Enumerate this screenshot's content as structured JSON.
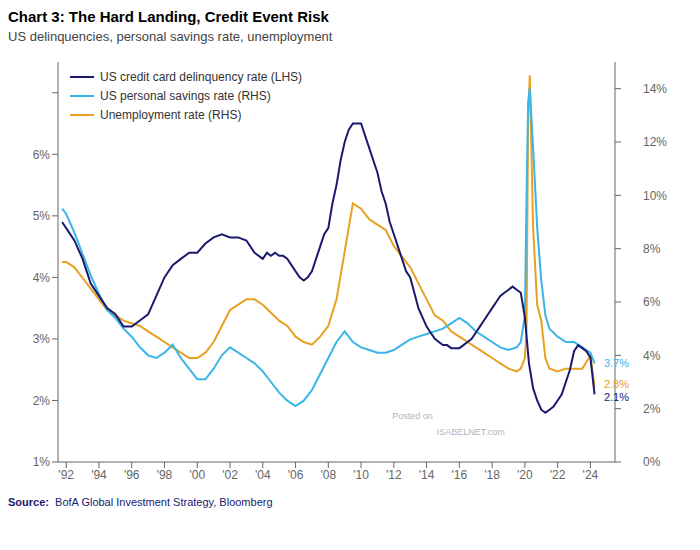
{
  "chart_data": {
    "type": "line",
    "title": "Chart 3: The Hard Landing, Credit Event Risk",
    "subtitle": "US delinquencies, personal savings rate, unemployment",
    "source_label": "Source:",
    "source": "  BofA Global Investment Strategy, Bloomberg",
    "xlim": [
      1991.5,
      2025.5
    ],
    "xticks": [
      {
        "value": 1992,
        "label": "'92"
      },
      {
        "value": 1994,
        "label": "'94"
      },
      {
        "value": 1996,
        "label": "'96"
      },
      {
        "value": 1998,
        "label": "'98"
      },
      {
        "value": 2000,
        "label": "'00"
      },
      {
        "value": 2002,
        "label": "'02"
      },
      {
        "value": 2004,
        "label": "'04"
      },
      {
        "value": 2006,
        "label": "'06"
      },
      {
        "value": 2008,
        "label": "'08"
      },
      {
        "value": 2010,
        "label": "'10"
      },
      {
        "value": 2012,
        "label": "'12"
      },
      {
        "value": 2014,
        "label": "'14"
      },
      {
        "value": 2016,
        "label": "'16"
      },
      {
        "value": 2018,
        "label": "'18"
      },
      {
        "value": 2020,
        "label": "'20"
      },
      {
        "value": 2022,
        "label": "'22"
      },
      {
        "value": 2024,
        "label": "'24"
      }
    ],
    "ylim": [
      1.0,
      7.5
    ],
    "yticks": [
      {
        "value": 1,
        "label": "1%"
      },
      {
        "value": 2,
        "label": "2%"
      },
      {
        "value": 3,
        "label": "3%"
      },
      {
        "value": 4,
        "label": "4%"
      },
      {
        "value": 5,
        "label": "5%"
      },
      {
        "value": 6,
        "label": "6%"
      },
      {
        "value": 7,
        "label": ""
      }
    ],
    "y2lim": [
      0.0,
      15.0
    ],
    "y2ticks": [
      {
        "value": 0,
        "label": "0%"
      },
      {
        "value": 2,
        "label": "2%"
      },
      {
        "value": 4,
        "label": "4%"
      },
      {
        "value": 6,
        "label": "6%"
      },
      {
        "value": 8,
        "label": "8%"
      },
      {
        "value": 10,
        "label": "10%"
      },
      {
        "value": 12,
        "label": "12%"
      },
      {
        "value": 14,
        "label": "14%"
      }
    ],
    "grid": false,
    "legend": "upper left",
    "series": [
      {
        "name": "US credit card delinquency rate (LHS)",
        "color": "#1a1a6e",
        "axis": "y",
        "x": [
          1991.75,
          1992.0,
          1992.5,
          1993.0,
          1993.5,
          1994.0,
          1994.5,
          1995.0,
          1995.5,
          1996.0,
          1996.5,
          1997.0,
          1997.5,
          1998.0,
          1998.5,
          1999.0,
          1999.5,
          2000.0,
          2000.5,
          2001.0,
          2001.5,
          2002.0,
          2002.5,
          2003.0,
          2003.5,
          2004.0,
          2004.25,
          2004.5,
          2004.75,
          2005.0,
          2005.25,
          2005.5,
          2005.75,
          2006.0,
          2006.25,
          2006.5,
          2006.75,
          2007.0,
          2007.25,
          2007.5,
          2007.75,
          2008.0,
          2008.25,
          2008.5,
          2008.75,
          2009.0,
          2009.25,
          2009.5,
          2009.75,
          2010.0,
          2010.25,
          2010.5,
          2010.75,
          2011.0,
          2011.25,
          2011.5,
          2011.75,
          2012.0,
          2012.25,
          2012.5,
          2012.75,
          2013.0,
          2013.25,
          2013.5,
          2013.75,
          2014.0,
          2014.25,
          2014.5,
          2014.75,
          2015.0,
          2015.25,
          2015.5,
          2015.75,
          2016.0,
          2016.25,
          2016.5,
          2016.75,
          2017.0,
          2017.25,
          2017.5,
          2017.75,
          2018.0,
          2018.25,
          2018.5,
          2018.75,
          2019.0,
          2019.25,
          2019.5,
          2019.75,
          2020.0,
          2020.25,
          2020.5,
          2020.75,
          2021.0,
          2021.25,
          2021.5,
          2021.75,
          2022.0,
          2022.25,
          2022.5,
          2022.75,
          2023.0,
          2023.25,
          2023.5,
          2023.75,
          2024.0,
          2024.25
        ],
        "values": [
          4.9,
          4.8,
          4.6,
          4.3,
          3.9,
          3.7,
          3.5,
          3.4,
          3.2,
          3.2,
          3.3,
          3.4,
          3.7,
          4.0,
          4.2,
          4.3,
          4.4,
          4.4,
          4.55,
          4.65,
          4.7,
          4.65,
          4.65,
          4.6,
          4.4,
          4.3,
          4.4,
          4.35,
          4.4,
          4.35,
          4.35,
          4.3,
          4.2,
          4.1,
          4.0,
          3.95,
          4.0,
          4.1,
          4.3,
          4.5,
          4.7,
          4.8,
          5.2,
          5.5,
          5.9,
          6.2,
          6.4,
          6.5,
          6.5,
          6.5,
          6.3,
          6.1,
          5.9,
          5.7,
          5.4,
          5.2,
          4.9,
          4.7,
          4.5,
          4.3,
          4.1,
          4.0,
          3.75,
          3.5,
          3.35,
          3.2,
          3.1,
          3.0,
          2.95,
          2.9,
          2.9,
          2.85,
          2.85,
          2.85,
          2.9,
          2.95,
          3.0,
          3.1,
          3.2,
          3.3,
          3.4,
          3.5,
          3.6,
          3.7,
          3.75,
          3.8,
          3.85,
          3.8,
          3.75,
          3.35,
          2.6,
          2.2,
          2.0,
          1.85,
          1.8,
          1.85,
          1.9,
          2.0,
          2.1,
          2.3,
          2.5,
          2.8,
          2.9,
          2.85,
          2.8,
          2.7,
          2.1
        ]
      },
      {
        "name": "US personal savings rate (RHS)",
        "color": "#3bb5e8",
        "axis": "y2",
        "x": [
          1991.75,
          1992.0,
          1992.5,
          1993.0,
          1993.5,
          1994.0,
          1994.5,
          1995.0,
          1995.5,
          1996.0,
          1996.5,
          1997.0,
          1997.5,
          1998.0,
          1998.5,
          1999.0,
          1999.5,
          2000.0,
          2000.5,
          2001.0,
          2001.5,
          2002.0,
          2002.5,
          2003.0,
          2003.5,
          2004.0,
          2004.5,
          2005.0,
          2005.5,
          2006.0,
          2006.5,
          2007.0,
          2007.5,
          2008.0,
          2008.5,
          2009.0,
          2009.5,
          2010.0,
          2010.5,
          2011.0,
          2011.5,
          2012.0,
          2012.5,
          2013.0,
          2013.5,
          2014.0,
          2014.5,
          2015.0,
          2015.5,
          2016.0,
          2016.5,
          2017.0,
          2017.5,
          2018.0,
          2018.5,
          2019.0,
          2019.5,
          2019.75,
          2020.0,
          2020.1,
          2020.2,
          2020.3,
          2020.5,
          2020.75,
          2021.0,
          2021.25,
          2021.5,
          2022.0,
          2022.5,
          2023.0,
          2023.5,
          2024.0,
          2024.25
        ],
        "values": [
          9.5,
          9.3,
          8.6,
          7.8,
          7.0,
          6.3,
          5.7,
          5.4,
          5.0,
          4.7,
          4.3,
          4.0,
          3.9,
          4.1,
          4.4,
          3.9,
          3.5,
          3.1,
          3.1,
          3.5,
          4.0,
          4.3,
          4.1,
          3.9,
          3.7,
          3.4,
          3.0,
          2.6,
          2.3,
          2.1,
          2.3,
          2.7,
          3.3,
          3.9,
          4.5,
          4.9,
          4.5,
          4.3,
          4.2,
          4.1,
          4.1,
          4.2,
          4.4,
          4.6,
          4.7,
          4.8,
          4.9,
          5.0,
          5.2,
          5.4,
          5.2,
          4.9,
          4.7,
          4.5,
          4.3,
          4.2,
          4.3,
          4.5,
          5.5,
          10.0,
          13.5,
          14.0,
          11.8,
          8.8,
          6.8,
          5.5,
          5.0,
          4.7,
          4.5,
          4.5,
          4.3,
          4.1,
          3.7
        ]
      },
      {
        "name": "Unemployment rate (RHS)",
        "color": "#e8a020",
        "axis": "y2",
        "x": [
          1991.75,
          1992.0,
          1992.5,
          1993.0,
          1993.5,
          1994.0,
          1994.5,
          1995.0,
          1995.5,
          1996.0,
          1996.5,
          1997.0,
          1997.5,
          1998.0,
          1998.5,
          1999.0,
          1999.5,
          2000.0,
          2000.5,
          2001.0,
          2001.5,
          2002.0,
          2002.5,
          2003.0,
          2003.5,
          2004.0,
          2004.5,
          2005.0,
          2005.5,
          2006.0,
          2006.5,
          2007.0,
          2007.5,
          2008.0,
          2008.5,
          2009.0,
          2009.5,
          2010.0,
          2010.5,
          2011.0,
          2011.5,
          2012.0,
          2012.5,
          2013.0,
          2013.5,
          2014.0,
          2014.5,
          2015.0,
          2015.5,
          2016.0,
          2016.5,
          2017.0,
          2017.5,
          2018.0,
          2018.5,
          2019.0,
          2019.5,
          2019.75,
          2020.0,
          2020.1,
          2020.2,
          2020.3,
          2020.5,
          2020.75,
          2021.0,
          2021.25,
          2021.5,
          2022.0,
          2022.5,
          2023.0,
          2023.5,
          2024.0,
          2024.25
        ],
        "values": [
          7.5,
          7.5,
          7.3,
          6.9,
          6.5,
          6.1,
          5.7,
          5.5,
          5.3,
          5.2,
          5.1,
          4.9,
          4.7,
          4.5,
          4.3,
          4.1,
          3.9,
          3.9,
          4.1,
          4.5,
          5.1,
          5.7,
          5.9,
          6.1,
          6.1,
          5.9,
          5.6,
          5.3,
          5.1,
          4.7,
          4.5,
          4.4,
          4.7,
          5.1,
          6.1,
          7.9,
          9.7,
          9.5,
          9.1,
          8.9,
          8.7,
          8.1,
          7.7,
          7.3,
          6.7,
          6.1,
          5.5,
          5.3,
          4.9,
          4.7,
          4.5,
          4.3,
          4.1,
          3.9,
          3.7,
          3.5,
          3.4,
          3.5,
          3.9,
          5.0,
          13.0,
          14.5,
          8.8,
          5.9,
          5.3,
          3.9,
          3.5,
          3.4,
          3.5,
          3.5,
          3.5,
          4.0,
          2.8
        ]
      }
    ],
    "annotations": [
      {
        "text": "3.7%",
        "x": 2024.7,
        "y": 3.7,
        "axis": "y2",
        "color": "#3bb5e8"
      },
      {
        "text": "2.8%",
        "x": 2024.7,
        "y": 2.8,
        "axis": "y2",
        "color": "#e8a020"
      },
      {
        "text": "2.1%",
        "x": 2024.7,
        "y": 2.1,
        "axis": "y",
        "color": "#1a1a6e"
      },
      {
        "text": "Posted on"
      },
      {
        "text": "ISABELNET.com"
      }
    ]
  }
}
